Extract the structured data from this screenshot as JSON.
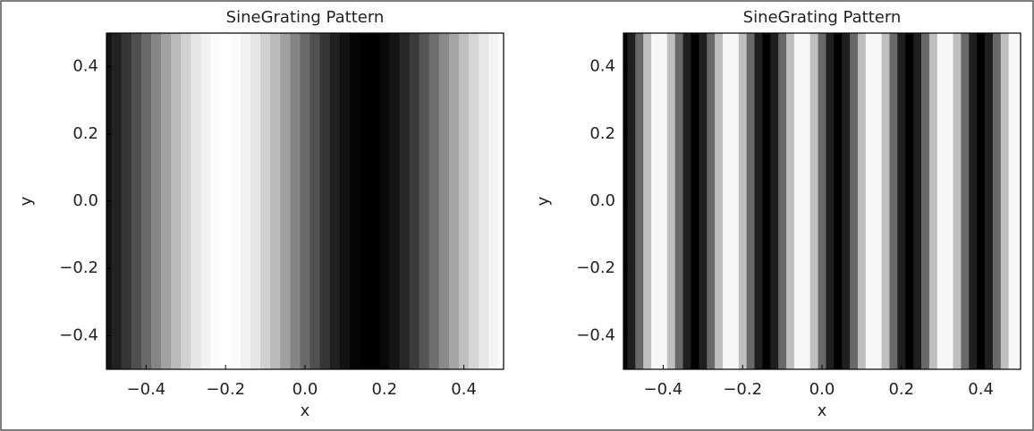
{
  "chart_data": [
    {
      "type": "image",
      "title": "SineGrating Pattern",
      "x_label": "x",
      "y_label": "y",
      "colormap": "gray",
      "x": [
        -0.5,
        -0.475,
        -0.45,
        -0.425,
        -0.4,
        -0.375,
        -0.35,
        -0.325,
        -0.3,
        -0.275,
        -0.25,
        -0.225,
        -0.2,
        -0.175,
        -0.15,
        -0.125,
        -0.1,
        -0.075,
        -0.05,
        -0.025,
        0,
        0.025,
        0.05,
        0.075,
        0.1,
        0.125,
        0.15,
        0.175,
        0.2,
        0.225,
        0.25,
        0.275,
        0.3,
        0.325,
        0.35,
        0.375,
        0.4,
        0.425,
        0.45,
        0.475,
        0.5
      ],
      "values": [
        0.07,
        0.13,
        0.21,
        0.31,
        0.41,
        0.52,
        0.63,
        0.73,
        0.82,
        0.9,
        0.95,
        0.99,
        1,
        0.99,
        0.95,
        0.9,
        0.82,
        0.73,
        0.63,
        0.52,
        0.41,
        0.31,
        0.21,
        0.13,
        0.07,
        0.02,
        0,
        0,
        0.03,
        0.08,
        0.15,
        0.23,
        0.33,
        0.43,
        0.54,
        0.65,
        0.75,
        0.84,
        0.91,
        0.96,
        0.99
      ],
      "xlim": [
        -0.5,
        0.5
      ],
      "ylim": [
        -0.5,
        0.5
      ],
      "xticks": [
        {
          "value": -0.4,
          "label": "−0.4"
        },
        {
          "value": -0.2,
          "label": "−0.2"
        },
        {
          "value": 0,
          "label": "0.0"
        },
        0.2,
        0.4
      ],
      "yticks": [
        {
          "value": -0.4,
          "label": "−0.4"
        },
        {
          "value": -0.2,
          "label": "−0.2"
        },
        {
          "value": 0,
          "label": "0.0"
        },
        0.2,
        0.4
      ]
    },
    {
      "type": "image",
      "title": "SineGrating Pattern",
      "x_label": "x",
      "y_label": "y",
      "colormap": "gray",
      "x": [
        -0.5,
        -0.48,
        -0.46,
        -0.44,
        -0.42,
        -0.4,
        -0.38,
        -0.36,
        -0.34,
        -0.32,
        -0.3,
        -0.28,
        -0.26,
        -0.24,
        -0.22,
        -0.2,
        -0.18,
        -0.16,
        -0.14,
        -0.12,
        -0.1,
        -0.08,
        -0.06,
        -0.04,
        -0.02,
        0,
        0.02,
        0.04,
        0.06,
        0.08,
        0.1,
        0.12,
        0.14,
        0.16,
        0.18,
        0.2,
        0.22,
        0.24,
        0.26,
        0.28,
        0.3,
        0.32,
        0.34,
        0.36,
        0.38,
        0.4,
        0.42,
        0.44,
        0.46,
        0.48,
        0.5
      ],
      "values": [
        0,
        0.12,
        0.41,
        0.75,
        0.97,
        0.97,
        0.75,
        0.41,
        0.12,
        0,
        0.12,
        0.41,
        0.75,
        0.97,
        0.97,
        0.75,
        0.41,
        0.12,
        0,
        0.12,
        0.41,
        0.75,
        0.97,
        0.97,
        0.75,
        0.41,
        0.12,
        0,
        0.12,
        0.41,
        0.75,
        0.97,
        0.97,
        0.75,
        0.41,
        0.12,
        0,
        0.12,
        0.41,
        0.75,
        0.97,
        0.97,
        0.75,
        0.41,
        0.12,
        0,
        0.12,
        0.41,
        0.75,
        0.97,
        0.97
      ],
      "xlim": [
        -0.5,
        0.5
      ],
      "ylim": [
        -0.5,
        0.5
      ],
      "xticks": [
        {
          "value": -0.4,
          "label": "−0.4"
        },
        {
          "value": -0.2,
          "label": "−0.2"
        },
        {
          "value": 0,
          "label": "0.0"
        },
        0.2,
        0.4
      ],
      "yticks": [
        {
          "value": -0.4,
          "label": "−0.4"
        },
        {
          "value": -0.2,
          "label": "−0.2"
        },
        {
          "value": 0,
          "label": "0.0"
        },
        0.2,
        0.4
      ]
    }
  ]
}
